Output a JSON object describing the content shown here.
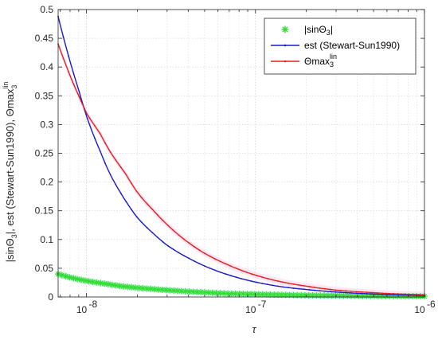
{
  "chart_data": {
    "type": "line",
    "title": "",
    "xlabel": "τ",
    "ylabel": "|sinΘ₃|, est (Stewart-Sun1990), Θmax₃ˡⁱⁿ",
    "xscale": "log",
    "xlim": [
      6.8e-09,
      1e-06
    ],
    "ylim": [
      0,
      0.5
    ],
    "grid": true,
    "legend_position": "top-right",
    "x_major_ticks": [
      {
        "value": 1e-08,
        "label": "10^-8",
        "base": "10",
        "exp": "-8"
      },
      {
        "value": 1e-07,
        "label": "10^-7",
        "base": "10",
        "exp": "-7"
      },
      {
        "value": 1e-06,
        "label": "10^-6",
        "base": "10",
        "exp": "-6"
      }
    ],
    "y_ticks": [
      {
        "value": 0,
        "label": "0"
      },
      {
        "value": 0.05,
        "label": "0.05"
      },
      {
        "value": 0.1,
        "label": "0.1"
      },
      {
        "value": 0.15,
        "label": "0.15"
      },
      {
        "value": 0.2,
        "label": "0.2"
      },
      {
        "value": 0.25,
        "label": "0.25"
      },
      {
        "value": 0.3,
        "label": "0.3"
      },
      {
        "value": 0.35,
        "label": "0.35"
      },
      {
        "value": 0.4,
        "label": "0.4"
      },
      {
        "value": 0.45,
        "label": "0.45"
      },
      {
        "value": 0.5,
        "label": "0.5"
      }
    ],
    "series": [
      {
        "name": "|sinΘ₃|",
        "style": "scatter",
        "marker": "asterisk",
        "color": "#33dd33",
        "band_color": "#bff5f5",
        "x": [
          6.8e-09,
          8e-09,
          1e-08,
          1.3e-08,
          1.6e-08,
          2e-08,
          3e-08,
          5e-08,
          7e-08,
          1e-07,
          2e-07,
          4e-07,
          7e-07,
          1e-06
        ],
        "y": [
          0.04,
          0.034,
          0.028,
          0.023,
          0.019,
          0.016,
          0.012,
          0.008,
          0.006,
          0.005,
          0.003,
          0.002,
          0.0015,
          0.0012
        ]
      },
      {
        "name": "est (Stewart-Sun1990)",
        "style": "line",
        "color": "#1a1acc",
        "x": [
          6.8e-09,
          8e-09,
          9e-09,
          1e-08,
          1.2e-08,
          1.4e-08,
          1.7e-08,
          2e-08,
          2.5e-08,
          3e-08,
          4e-08,
          5e-08,
          7e-08,
          1e-07,
          1.5e-07,
          2e-07,
          3e-07,
          5e-07,
          7e-07,
          1e-06
        ],
        "y": [
          0.488,
          0.41,
          0.36,
          0.315,
          0.255,
          0.21,
          0.168,
          0.138,
          0.11,
          0.09,
          0.068,
          0.054,
          0.038,
          0.026,
          0.017,
          0.013,
          0.0087,
          0.0052,
          0.0037,
          0.0026
        ]
      },
      {
        "name": "Θmax₃ˡⁱⁿ",
        "style": "line",
        "color": "#e02020",
        "band_color": "#ffd6ee",
        "x": [
          6.8e-09,
          8e-09,
          9e-09,
          1e-08,
          1.2e-08,
          1.4e-08,
          1.7e-08,
          2e-08,
          2.5e-08,
          3e-08,
          4e-08,
          5e-08,
          7e-08,
          1e-07,
          1.5e-07,
          2e-07,
          3e-07,
          5e-07,
          7e-07,
          1e-06
        ],
        "y": [
          0.44,
          0.385,
          0.35,
          0.32,
          0.285,
          0.25,
          0.215,
          0.182,
          0.15,
          0.126,
          0.095,
          0.076,
          0.055,
          0.038,
          0.025,
          0.019,
          0.012,
          0.0075,
          0.0052,
          0.0037
        ]
      }
    ],
    "legend": [
      {
        "text_main": "|sinΘ",
        "sub": "3",
        "sup": "",
        "text_tail": "|"
      },
      {
        "text_main": "est (Stewart-Sun1990)",
        "sub": "",
        "sup": "",
        "text_tail": ""
      },
      {
        "text_main": "Θmax",
        "sub": "3",
        "sup": "lin",
        "text_tail": ""
      }
    ],
    "ylabel_parts": {
      "a": "|sinΘ",
      "a_sub": "3",
      "b": "|, est (Stewart-Sun1990), Θmax",
      "b_sub": "3",
      "b_sup": "lin"
    }
  }
}
